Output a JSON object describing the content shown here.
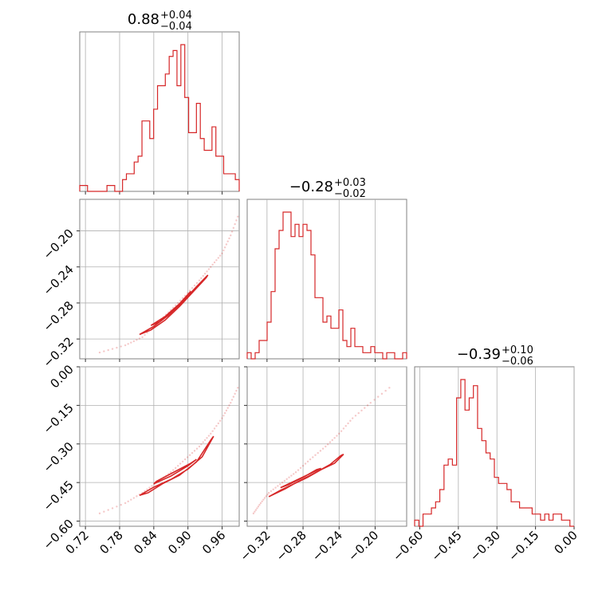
{
  "chart_data": {
    "type": "corner",
    "color": "#d62728",
    "parameters": [
      {
        "title_value": "0.88",
        "title_plus": "+0.04",
        "title_minus": "−0.04",
        "range": [
          0.71,
          0.99
        ],
        "ticks": [
          0.72,
          0.78,
          0.84,
          0.9,
          0.96
        ],
        "tick_labels": [
          "0.72",
          "0.78",
          "0.84",
          "0.90",
          "0.96"
        ],
        "hist_bins": [
          1,
          1,
          0,
          0,
          0,
          0,
          0,
          1,
          1,
          0,
          0,
          2,
          3,
          3,
          5,
          6,
          12,
          12,
          9,
          14,
          18,
          18,
          20,
          23,
          24,
          18,
          25,
          16,
          10,
          10,
          15,
          9,
          7,
          7,
          11,
          6,
          6,
          3,
          3,
          3,
          2
        ],
        "hist_max": 25
      },
      {
        "title_value": "−0.28",
        "title_plus": "+0.03",
        "title_minus": "−0.02",
        "range": [
          -0.342,
          -0.165
        ],
        "ticks": [
          -0.32,
          -0.28,
          -0.24,
          -0.2
        ],
        "tick_labels": [
          "−0.32",
          "−0.28",
          "−0.24",
          "−0.20"
        ],
        "left_tick_labels": [
          "−0.20",
          "−0.24",
          "−0.28",
          "−0.32"
        ],
        "hist_bins": [
          1,
          0,
          1,
          3,
          3,
          6,
          11,
          18,
          21,
          24,
          24,
          20,
          22,
          20,
          22,
          21,
          17,
          10,
          10,
          6,
          7,
          5,
          5,
          8,
          3,
          2,
          5,
          2,
          2,
          1,
          1,
          2,
          1,
          1,
          0,
          1,
          1,
          0,
          0,
          1
        ],
        "hist_max": 24
      },
      {
        "title_value": "−0.39",
        "title_plus": "+0.10",
        "title_minus": "−0.06",
        "range": [
          -0.62,
          0.0
        ],
        "ticks": [
          -0.6,
          -0.45,
          -0.3,
          -0.15,
          0.0
        ],
        "tick_labels": [
          "−0.60",
          "−0.45",
          "−0.30",
          "−0.15",
          "0.00"
        ],
        "left_tick_labels": [
          "0.00",
          "−0.15",
          "−0.30",
          "−0.45",
          "−0.60"
        ],
        "hist_bins": [
          1,
          0,
          2,
          2,
          3,
          4,
          6,
          10,
          11,
          10,
          21,
          24,
          19,
          21,
          23,
          16,
          14,
          12,
          11,
          8,
          7,
          7,
          6,
          4,
          4,
          3,
          3,
          3,
          2,
          2,
          1,
          2,
          1,
          2,
          2,
          1,
          1,
          0
        ],
        "hist_max": 24
      }
    ],
    "scatter_curve": {
      "p1": [
        0.745,
        0.79,
        0.82,
        0.845,
        0.87,
        0.895,
        0.92,
        0.94,
        0.96,
        0.975,
        0.99
      ],
      "p2": [
        -0.335,
        -0.327,
        -0.318,
        -0.303,
        -0.288,
        -0.272,
        -0.255,
        -0.24,
        -0.225,
        -0.205,
        -0.18
      ],
      "p3": [
        -0.57,
        -0.53,
        -0.49,
        -0.45,
        -0.41,
        -0.36,
        -0.31,
        -0.26,
        -0.2,
        -0.14,
        -0.07
      ]
    },
    "contours": {
      "p1p2": [
        [
          [
            0.815,
            -0.315
          ],
          [
            0.84,
            -0.306
          ],
          [
            0.865,
            -0.294
          ],
          [
            0.89,
            -0.279
          ],
          [
            0.915,
            -0.262
          ],
          [
            0.935,
            -0.249
          ],
          [
            0.932,
            -0.252
          ],
          [
            0.91,
            -0.267
          ],
          [
            0.885,
            -0.284
          ],
          [
            0.86,
            -0.299
          ],
          [
            0.835,
            -0.31
          ],
          [
            0.815,
            -0.315
          ]
        ],
        [
          [
            0.835,
            -0.305
          ],
          [
            0.86,
            -0.295
          ],
          [
            0.885,
            -0.281
          ],
          [
            0.905,
            -0.267
          ],
          [
            0.9,
            -0.272
          ],
          [
            0.875,
            -0.288
          ],
          [
            0.85,
            -0.301
          ],
          [
            0.835,
            -0.305
          ]
        ]
      ],
      "p1p3": [
        [
          [
            0.815,
            -0.5
          ],
          [
            0.84,
            -0.468
          ],
          [
            0.87,
            -0.438
          ],
          [
            0.9,
            -0.398
          ],
          [
            0.925,
            -0.35
          ],
          [
            0.945,
            -0.27
          ],
          [
            0.94,
            -0.285
          ],
          [
            0.915,
            -0.37
          ],
          [
            0.885,
            -0.422
          ],
          [
            0.855,
            -0.455
          ],
          [
            0.83,
            -0.49
          ],
          [
            0.815,
            -0.5
          ]
        ],
        [
          [
            0.84,
            -0.455
          ],
          [
            0.87,
            -0.425
          ],
          [
            0.9,
            -0.385
          ],
          [
            0.915,
            -0.36
          ],
          [
            0.905,
            -0.375
          ],
          [
            0.875,
            -0.41
          ],
          [
            0.845,
            -0.445
          ],
          [
            0.84,
            -0.455
          ]
        ]
      ],
      "p2p3": [
        [
          [
            -0.318,
            -0.505
          ],
          [
            -0.305,
            -0.48
          ],
          [
            -0.29,
            -0.455
          ],
          [
            -0.275,
            -0.43
          ],
          [
            -0.26,
            -0.4
          ],
          [
            -0.245,
            -0.375
          ],
          [
            -0.235,
            -0.34
          ],
          [
            -0.238,
            -0.345
          ],
          [
            -0.25,
            -0.38
          ],
          [
            -0.268,
            -0.415
          ],
          [
            -0.285,
            -0.445
          ],
          [
            -0.3,
            -0.475
          ],
          [
            -0.318,
            -0.505
          ]
        ],
        [
          [
            -0.305,
            -0.47
          ],
          [
            -0.29,
            -0.445
          ],
          [
            -0.275,
            -0.42
          ],
          [
            -0.26,
            -0.395
          ],
          [
            -0.265,
            -0.4
          ],
          [
            -0.28,
            -0.43
          ],
          [
            -0.296,
            -0.458
          ],
          [
            -0.305,
            -0.47
          ]
        ]
      ]
    }
  }
}
